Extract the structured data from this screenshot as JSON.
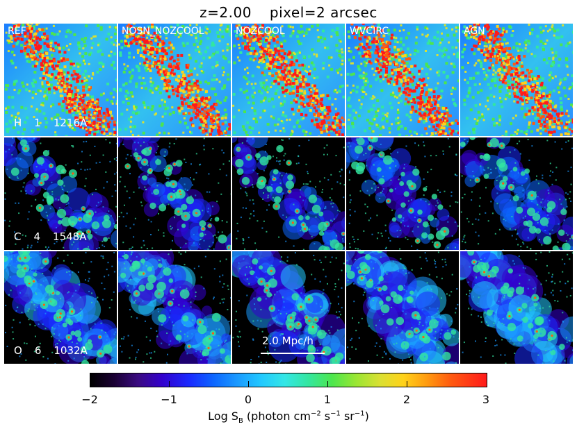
{
  "title": {
    "redshift": "z=2.00",
    "pixel": "pixel=2 arcsec"
  },
  "columns": [
    "REF",
    "NOSN_NOZCOOL",
    "NOZCOOL",
    "WVCIRC",
    "AGN"
  ],
  "rows": [
    {
      "line": [
        "H",
        "1",
        "1216A"
      ],
      "colormode": "hi"
    },
    {
      "line": [
        "C",
        "4",
        "1548A"
      ],
      "colormode": "civ"
    },
    {
      "line": [
        "O",
        "6",
        "1032A"
      ],
      "colormode": "ovi"
    }
  ],
  "scalebar": {
    "label": "2.0 Mpc/h"
  },
  "colorbar": {
    "ticks": [
      "−2",
      "−1",
      "0",
      "1",
      "2",
      "3"
    ],
    "label_main": "Log S",
    "label_sub": "B",
    "label_units": " (photon cm",
    "label_exp1": "−2",
    "label_s": " s",
    "label_exp2": "−1",
    "label_sr": " sr",
    "label_exp3": "−1",
    "label_close": ")"
  }
}
